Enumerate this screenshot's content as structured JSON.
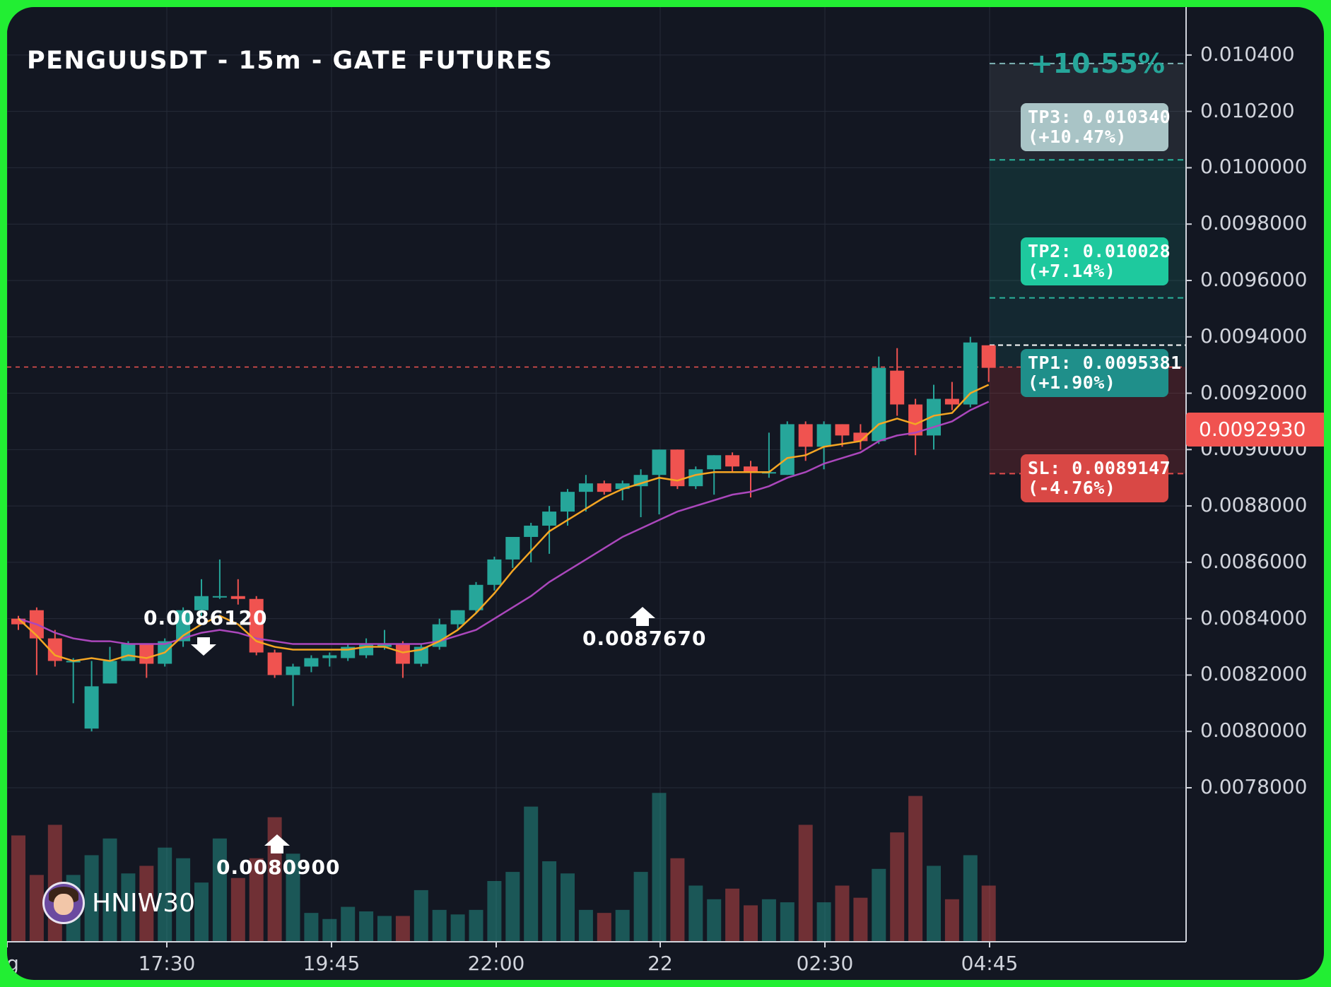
{
  "title": "PENGUUSDT - 15m - GATE FUTURES",
  "top_percent": "+10.55%",
  "boxes": {
    "tp3": {
      "line1": "TP3: 0.010340",
      "line2": "(+10.47%)"
    },
    "tp2": {
      "line1": "TP2: 0.010028",
      "line2": "(+7.14%)"
    },
    "tp1": {
      "line1": "TP1: 0.0095381",
      "line2": "(+1.90%)"
    },
    "sl": {
      "line1": "SL: 0.0089147",
      "line2": "(-4.76%)"
    }
  },
  "markers": {
    "high": "0.0086120",
    "low": "0.0080900",
    "entry": "0.0087670"
  },
  "current_price": "0.0092930",
  "watermark": "HNIW30",
  "colors": {
    "background": "#131722",
    "up": "#26a69a",
    "down": "#f05350",
    "ema_fast": "#f5a623",
    "ema_slow": "#ab47bc",
    "tp3_box": "#a9c4c6",
    "tp2_box": "#1ec99e",
    "tp1_box": "#1f8f8a",
    "sl_box": "#d94845"
  },
  "chart_data": {
    "type": "candlestick",
    "title": "PENGUUSDT - 15m - GATE FUTURES",
    "y_ticks": [
      "0.010400",
      "0.010200",
      "0.0100000",
      "0.0098000",
      "0.0096000",
      "0.0094000",
      "0.0092000",
      "0.0090000",
      "0.0088000",
      "0.0086000",
      "0.0084000",
      "0.0082000",
      "0.0080000",
      "0.0078000"
    ],
    "x_ticks": [
      "g",
      "17:30",
      "19:45",
      "22:00",
      "22",
      "02:30",
      "04:45"
    ],
    "ylim": [
      0.00773,
      0.01055
    ],
    "levels": {
      "tp3": 0.01034,
      "tp2": 0.010028,
      "tp1": 0.0095381,
      "entry": 0.009293,
      "sl": 0.0089147,
      "top": 0.01037
    },
    "candles": [
      {
        "o": 0.0084,
        "h": 0.00841,
        "l": 0.00836,
        "c": 0.00838
      },
      {
        "o": 0.00843,
        "h": 0.00844,
        "l": 0.0082,
        "c": 0.00833
      },
      {
        "o": 0.00833,
        "h": 0.00836,
        "l": 0.00823,
        "c": 0.00825
      },
      {
        "o": 0.00825,
        "h": 0.00826,
        "l": 0.0081,
        "c": 0.00825
      },
      {
        "o": 0.00801,
        "h": 0.00825,
        "l": 0.008,
        "c": 0.00816
      },
      {
        "o": 0.00817,
        "h": 0.0083,
        "l": 0.00817,
        "c": 0.00825
      },
      {
        "o": 0.00825,
        "h": 0.00832,
        "l": 0.00825,
        "c": 0.00831
      },
      {
        "o": 0.00831,
        "h": 0.00831,
        "l": 0.00819,
        "c": 0.00824
      },
      {
        "o": 0.00824,
        "h": 0.00833,
        "l": 0.00823,
        "c": 0.00832
      },
      {
        "o": 0.00832,
        "h": 0.00844,
        "l": 0.0083,
        "c": 0.00843
      },
      {
        "o": 0.00843,
        "h": 0.00854,
        "l": 0.00841,
        "c": 0.00848
      },
      {
        "o": 0.00848,
        "h": 0.00861,
        "l": 0.00847,
        "c": 0.00848
      },
      {
        "o": 0.00848,
        "h": 0.00854,
        "l": 0.00845,
        "c": 0.00847
      },
      {
        "o": 0.00847,
        "h": 0.00848,
        "l": 0.00827,
        "c": 0.00828
      },
      {
        "o": 0.00828,
        "h": 0.00829,
        "l": 0.00819,
        "c": 0.0082
      },
      {
        "o": 0.0082,
        "h": 0.00824,
        "l": 0.00809,
        "c": 0.00823
      },
      {
        "o": 0.00823,
        "h": 0.00827,
        "l": 0.00821,
        "c": 0.00826
      },
      {
        "o": 0.00826,
        "h": 0.00828,
        "l": 0.00823,
        "c": 0.00827
      },
      {
        "o": 0.00826,
        "h": 0.00831,
        "l": 0.00825,
        "c": 0.0083
      },
      {
        "o": 0.00827,
        "h": 0.00833,
        "l": 0.00826,
        "c": 0.00831
      },
      {
        "o": 0.0083,
        "h": 0.00836,
        "l": 0.00829,
        "c": 0.00831
      },
      {
        "o": 0.00831,
        "h": 0.00832,
        "l": 0.00819,
        "c": 0.00824
      },
      {
        "o": 0.00824,
        "h": 0.00831,
        "l": 0.00823,
        "c": 0.0083
      },
      {
        "o": 0.0083,
        "h": 0.0084,
        "l": 0.00829,
        "c": 0.00838
      },
      {
        "o": 0.00838,
        "h": 0.00843,
        "l": 0.00836,
        "c": 0.00843
      },
      {
        "o": 0.00843,
        "h": 0.00853,
        "l": 0.00842,
        "c": 0.00852
      },
      {
        "o": 0.00852,
        "h": 0.00862,
        "l": 0.0085,
        "c": 0.00861
      },
      {
        "o": 0.00861,
        "h": 0.00868,
        "l": 0.00858,
        "c": 0.00869
      },
      {
        "o": 0.00869,
        "h": 0.00874,
        "l": 0.0086,
        "c": 0.00873
      },
      {
        "o": 0.00873,
        "h": 0.0088,
        "l": 0.00863,
        "c": 0.00878
      },
      {
        "o": 0.00878,
        "h": 0.00886,
        "l": 0.00873,
        "c": 0.00885
      },
      {
        "o": 0.00885,
        "h": 0.00891,
        "l": 0.00878,
        "c": 0.00888
      },
      {
        "o": 0.00888,
        "h": 0.00889,
        "l": 0.00884,
        "c": 0.00885
      },
      {
        "o": 0.00886,
        "h": 0.00889,
        "l": 0.00882,
        "c": 0.00888
      },
      {
        "o": 0.00887,
        "h": 0.00893,
        "l": 0.00876,
        "c": 0.00891
      },
      {
        "o": 0.00891,
        "h": 0.009,
        "l": 0.00877,
        "c": 0.009
      },
      {
        "o": 0.009,
        "h": 0.009,
        "l": 0.00886,
        "c": 0.00887
      },
      {
        "o": 0.00887,
        "h": 0.00894,
        "l": 0.00886,
        "c": 0.00893
      },
      {
        "o": 0.00893,
        "h": 0.00898,
        "l": 0.00884,
        "c": 0.00898
      },
      {
        "o": 0.00898,
        "h": 0.00899,
        "l": 0.00892,
        "c": 0.00894
      },
      {
        "o": 0.00894,
        "h": 0.00896,
        "l": 0.00883,
        "c": 0.00892
      },
      {
        "o": 0.00892,
        "h": 0.00906,
        "l": 0.0089,
        "c": 0.00892
      },
      {
        "o": 0.00891,
        "h": 0.0091,
        "l": 0.00891,
        "c": 0.00909
      },
      {
        "o": 0.00909,
        "h": 0.0091,
        "l": 0.00896,
        "c": 0.00901
      },
      {
        "o": 0.00901,
        "h": 0.0091,
        "l": 0.00893,
        "c": 0.00909
      },
      {
        "o": 0.00909,
        "h": 0.00909,
        "l": 0.00901,
        "c": 0.00905
      },
      {
        "o": 0.00906,
        "h": 0.00909,
        "l": 0.009,
        "c": 0.00903
      },
      {
        "o": 0.00903,
        "h": 0.00933,
        "l": 0.00902,
        "c": 0.00929
      },
      {
        "o": 0.00928,
        "h": 0.00936,
        "l": 0.00912,
        "c": 0.00916
      },
      {
        "o": 0.00916,
        "h": 0.00918,
        "l": 0.00898,
        "c": 0.00905
      },
      {
        "o": 0.00905,
        "h": 0.00923,
        "l": 0.009,
        "c": 0.00918
      },
      {
        "o": 0.00918,
        "h": 0.00924,
        "l": 0.00914,
        "c": 0.00916
      },
      {
        "o": 0.00916,
        "h": 0.0094,
        "l": 0.00915,
        "c": 0.00938
      },
      {
        "o": 0.00937,
        "h": 0.00937,
        "l": 0.00924,
        "c": 0.00929
      }
    ],
    "ema_fast": [
      0.0084,
      0.00834,
      0.00827,
      0.00825,
      0.00826,
      0.00825,
      0.00827,
      0.00826,
      0.00828,
      0.00834,
      0.00838,
      0.00841,
      0.00838,
      0.00832,
      0.0083,
      0.00829,
      0.00829,
      0.00829,
      0.00829,
      0.0083,
      0.0083,
      0.00828,
      0.00829,
      0.00832,
      0.00836,
      0.00842,
      0.00849,
      0.00857,
      0.00864,
      0.00871,
      0.00875,
      0.00879,
      0.00883,
      0.00886,
      0.00888,
      0.0089,
      0.00889,
      0.00891,
      0.00892,
      0.00892,
      0.00892,
      0.00892,
      0.00897,
      0.00898,
      0.00901,
      0.00902,
      0.00903,
      0.00909,
      0.00911,
      0.00909,
      0.00912,
      0.00913,
      0.0092,
      0.00923
    ],
    "ema_slow": [
      0.0084,
      0.00838,
      0.00835,
      0.00833,
      0.00832,
      0.00832,
      0.00831,
      0.00831,
      0.00831,
      0.00833,
      0.00835,
      0.00836,
      0.00835,
      0.00833,
      0.00832,
      0.00831,
      0.00831,
      0.00831,
      0.00831,
      0.00831,
      0.00831,
      0.00831,
      0.00831,
      0.00832,
      0.00834,
      0.00836,
      0.0084,
      0.00844,
      0.00848,
      0.00853,
      0.00857,
      0.00861,
      0.00865,
      0.00869,
      0.00872,
      0.00875,
      0.00878,
      0.0088,
      0.00882,
      0.00884,
      0.00885,
      0.00887,
      0.0089,
      0.00892,
      0.00895,
      0.00897,
      0.00899,
      0.00903,
      0.00905,
      0.00906,
      0.00908,
      0.0091,
      0.00914,
      0.00917
    ],
    "volume": [
      0.7,
      0.44,
      0.77,
      0.44,
      0.57,
      0.68,
      0.45,
      0.5,
      0.62,
      0.55,
      0.39,
      0.68,
      0.42,
      0.55,
      0.82,
      0.58,
      0.19,
      0.15,
      0.23,
      0.2,
      0.17,
      0.17,
      0.34,
      0.21,
      0.18,
      0.21,
      0.4,
      0.46,
      0.89,
      0.53,
      0.45,
      0.21,
      0.19,
      0.21,
      0.46,
      0.98,
      0.55,
      0.37,
      0.28,
      0.35,
      0.24,
      0.28,
      0.26,
      0.77,
      0.26,
      0.37,
      0.29,
      0.48,
      0.72,
      0.96,
      0.5,
      0.28,
      0.57,
      0.37
    ]
  }
}
